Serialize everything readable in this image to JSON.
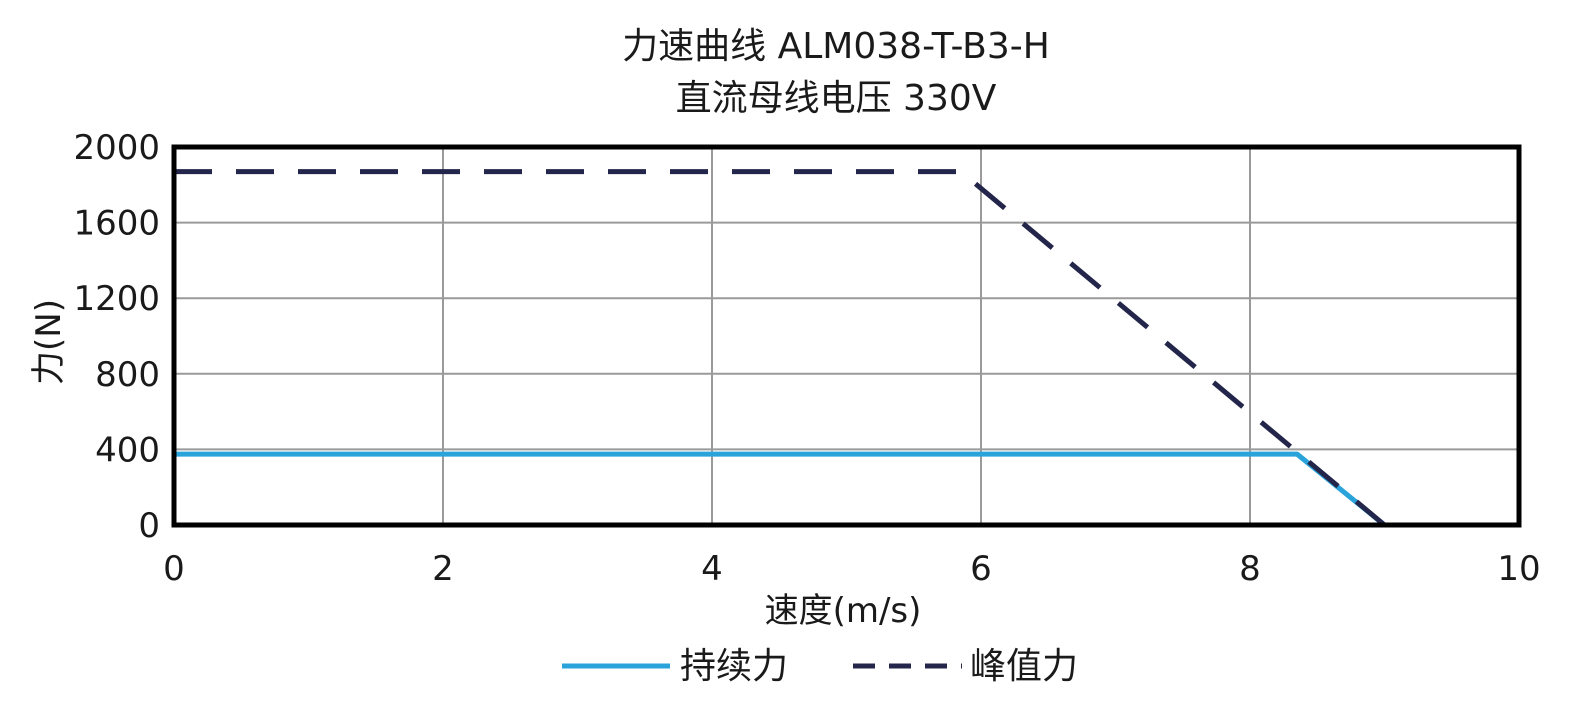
{
  "chart_data": {
    "type": "line",
    "title": "力速曲线 ALM038-T-B3-H",
    "subtitle": "直流母线电压 330V",
    "xlabel": "速度(m/s)",
    "ylabel": "力(N)",
    "xlim": [
      0,
      10
    ],
    "ylim": [
      0,
      2000
    ],
    "xticks": [
      "0",
      "2",
      "4",
      "6",
      "8",
      "10"
    ],
    "yticks": [
      "0",
      "400",
      "800",
      "1200",
      "1600",
      "2000"
    ],
    "grid": true,
    "legend_position": "bottom",
    "series": [
      {
        "name": "持续力",
        "style": "solid",
        "color": "#29a3d9",
        "x": [
          0,
          8.35,
          9.0
        ],
        "y": [
          375,
          375,
          0
        ]
      },
      {
        "name": "峰值力",
        "style": "dashed",
        "color": "#23264a",
        "x": [
          0,
          5.85,
          9.0
        ],
        "y": [
          1870,
          1870,
          0
        ]
      }
    ]
  }
}
